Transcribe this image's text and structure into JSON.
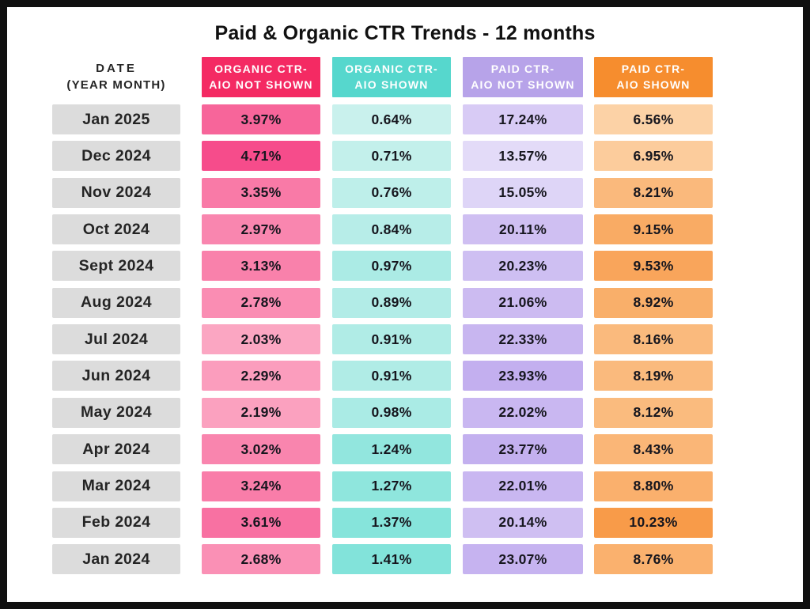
{
  "title": "Paid & Organic CTR Trends - 12 months",
  "table": {
    "date_header": {
      "line1": "DATE",
      "line2": "(YEAR MONTH)"
    },
    "date_cell_color": "#DCDCDC",
    "columns": [
      {
        "id": "organic_not_shown",
        "label_line1": "ORGANIC CTR-",
        "label_line2": "AIO NOT SHOWN",
        "header_color": "#F42A63",
        "cell_light": "#FBA6C2",
        "cell_dark": "#F64C8B"
      },
      {
        "id": "organic_shown",
        "label_line1": "ORGANIC CTR-",
        "label_line2": "AIO SHOWN",
        "header_color": "#56D7CD",
        "cell_light": "#C9F1ED",
        "cell_dark": "#82E3DA"
      },
      {
        "id": "paid_not_shown",
        "label_line1": "PAID CTR-",
        "label_line2": "AIO NOT SHOWN",
        "header_color": "#B7A3E9",
        "cell_light": "#E3DBF8",
        "cell_dark": "#C3AFEF"
      },
      {
        "id": "paid_shown",
        "label_line1": "PAID CTR-",
        "label_line2": "AIO SHOWN",
        "header_color": "#F68D2E",
        "cell_light": "#FCD2A6",
        "cell_dark": "#F89B49"
      }
    ],
    "rows": [
      {
        "date": "Jan 2025",
        "organic_not_shown": "3.97%",
        "organic_shown": "0.64%",
        "paid_not_shown": "17.24%",
        "paid_shown": "6.56%"
      },
      {
        "date": "Dec 2024",
        "organic_not_shown": "4.71%",
        "organic_shown": "0.71%",
        "paid_not_shown": "13.57%",
        "paid_shown": "6.95%"
      },
      {
        "date": "Nov 2024",
        "organic_not_shown": "3.35%",
        "organic_shown": "0.76%",
        "paid_not_shown": "15.05%",
        "paid_shown": "8.21%"
      },
      {
        "date": "Oct 2024",
        "organic_not_shown": "2.97%",
        "organic_shown": "0.84%",
        "paid_not_shown": "20.11%",
        "paid_shown": "9.15%"
      },
      {
        "date": "Sept 2024",
        "organic_not_shown": "3.13%",
        "organic_shown": "0.97%",
        "paid_not_shown": "20.23%",
        "paid_shown": "9.53%"
      },
      {
        "date": "Aug 2024",
        "organic_not_shown": "2.78%",
        "organic_shown": "0.89%",
        "paid_not_shown": "21.06%",
        "paid_shown": "8.92%"
      },
      {
        "date": "Jul 2024",
        "organic_not_shown": "2.03%",
        "organic_shown": "0.91%",
        "paid_not_shown": "22.33%",
        "paid_shown": "8.16%"
      },
      {
        "date": "Jun 2024",
        "organic_not_shown": "2.29%",
        "organic_shown": "0.91%",
        "paid_not_shown": "23.93%",
        "paid_shown": "8.19%"
      },
      {
        "date": "May 2024",
        "organic_not_shown": "2.19%",
        "organic_shown": "0.98%",
        "paid_not_shown": "22.02%",
        "paid_shown": "8.12%"
      },
      {
        "date": "Apr 2024",
        "organic_not_shown": "3.02%",
        "organic_shown": "1.24%",
        "paid_not_shown": "23.77%",
        "paid_shown": "8.43%"
      },
      {
        "date": "Mar 2024",
        "organic_not_shown": "3.24%",
        "organic_shown": "1.27%",
        "paid_not_shown": "22.01%",
        "paid_shown": "8.80%"
      },
      {
        "date": "Feb 2024",
        "organic_not_shown": "3.61%",
        "organic_shown": "1.37%",
        "paid_not_shown": "20.14%",
        "paid_shown": "10.23%"
      },
      {
        "date": "Jan 2024",
        "organic_not_shown": "2.68%",
        "organic_shown": "1.41%",
        "paid_not_shown": "23.07%",
        "paid_shown": "8.76%"
      }
    ]
  },
  "chart_data": {
    "type": "table",
    "title": "Paid & Organic CTR Trends - 12 months",
    "categories": [
      "Jan 2025",
      "Dec 2024",
      "Nov 2024",
      "Oct 2024",
      "Sept 2024",
      "Aug 2024",
      "Jul 2024",
      "Jun 2024",
      "May 2024",
      "Apr 2024",
      "Mar 2024",
      "Feb 2024",
      "Jan 2024"
    ],
    "series": [
      {
        "name": "Organic CTR - AIO Not Shown",
        "unit": "%",
        "values": [
          3.97,
          4.71,
          3.35,
          2.97,
          3.13,
          2.78,
          2.03,
          2.29,
          2.19,
          3.02,
          3.24,
          3.61,
          2.68
        ]
      },
      {
        "name": "Organic CTR - AIO Shown",
        "unit": "%",
        "values": [
          0.64,
          0.71,
          0.76,
          0.84,
          0.97,
          0.89,
          0.91,
          0.91,
          0.98,
          1.24,
          1.27,
          1.37,
          1.41
        ]
      },
      {
        "name": "Paid CTR - AIO Not Shown",
        "unit": "%",
        "values": [
          17.24,
          13.57,
          15.05,
          20.11,
          20.23,
          21.06,
          22.33,
          23.93,
          22.02,
          23.77,
          22.01,
          20.14,
          23.07
        ]
      },
      {
        "name": "Paid CTR - AIO Shown",
        "unit": "%",
        "values": [
          6.56,
          6.95,
          8.21,
          9.15,
          9.53,
          8.92,
          8.16,
          8.19,
          8.12,
          8.43,
          8.8,
          10.23,
          8.76
        ]
      }
    ],
    "layout": {
      "heatmap_shading": "per-column intensity, darker = higher value",
      "legend_position": "none",
      "grid": false
    }
  }
}
